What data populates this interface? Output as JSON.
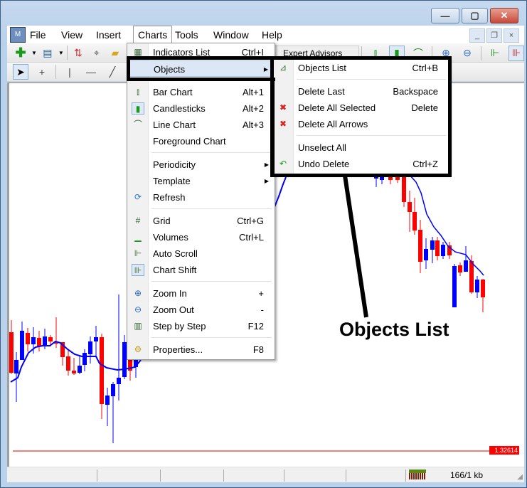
{
  "window": {
    "minimize": "—",
    "maximize": "▢",
    "close": "✕"
  },
  "menubar": {
    "items": [
      "File",
      "View",
      "Insert",
      "Charts",
      "Tools",
      "Window",
      "Help"
    ],
    "mdi": [
      "_",
      "❐",
      "×"
    ]
  },
  "toolbar": {
    "expert_advisors": "Expert Advisors"
  },
  "charts_menu": {
    "items": [
      {
        "label": "Indicators List",
        "shortcut": "Ctrl+I",
        "icon": "indicators-icon"
      },
      {
        "label": "Objects",
        "shortcut": "",
        "icon": "",
        "submenu": true,
        "highlighted": true
      },
      {
        "sep": true
      },
      {
        "label": "Bar Chart",
        "shortcut": "Alt+1",
        "icon": "bar-chart-icon"
      },
      {
        "label": "Candlesticks",
        "shortcut": "Alt+2",
        "icon": "candlesticks-icon",
        "checked": true
      },
      {
        "label": "Line Chart",
        "shortcut": "Alt+3",
        "icon": "line-chart-icon"
      },
      {
        "label": "Foreground Chart",
        "shortcut": "",
        "icon": ""
      },
      {
        "sep": true
      },
      {
        "label": "Periodicity",
        "shortcut": "",
        "icon": "",
        "submenu": true
      },
      {
        "label": "Template",
        "shortcut": "",
        "icon": "",
        "submenu": true
      },
      {
        "label": "Refresh",
        "shortcut": "",
        "icon": "refresh-icon"
      },
      {
        "sep": true
      },
      {
        "label": "Grid",
        "shortcut": "Ctrl+G",
        "icon": "grid-icon"
      },
      {
        "label": "Volumes",
        "shortcut": "Ctrl+L",
        "icon": "volumes-icon"
      },
      {
        "label": "Auto Scroll",
        "shortcut": "",
        "icon": "auto-scroll-icon"
      },
      {
        "label": "Chart Shift",
        "shortcut": "",
        "icon": "chart-shift-icon",
        "checked": true
      },
      {
        "sep": true
      },
      {
        "label": "Zoom In",
        "shortcut": "+",
        "icon": "zoom-in-icon"
      },
      {
        "label": "Zoom Out",
        "shortcut": "-",
        "icon": "zoom-out-icon"
      },
      {
        "label": "Step by Step",
        "shortcut": "F12",
        "icon": "step-by-step-icon"
      },
      {
        "sep": true
      },
      {
        "label": "Properties...",
        "shortcut": "F8",
        "icon": "properties-icon"
      }
    ]
  },
  "objects_submenu": {
    "items": [
      {
        "label": "Objects List",
        "shortcut": "Ctrl+B",
        "icon": "objects-list-icon"
      },
      {
        "sep": true
      },
      {
        "label": "Delete Last",
        "shortcut": "Backspace",
        "icon": ""
      },
      {
        "label": "Delete All Selected",
        "shortcut": "Delete",
        "icon": "delete-selected-icon"
      },
      {
        "label": "Delete All Arrows",
        "shortcut": "",
        "icon": "delete-arrows-icon"
      },
      {
        "sep": true
      },
      {
        "label": "Unselect All",
        "shortcut": "",
        "icon": ""
      },
      {
        "label": "Undo Delete",
        "shortcut": "Ctrl+Z",
        "icon": "undo-icon"
      }
    ]
  },
  "annotation": {
    "label": "Objects List"
  },
  "chart": {
    "price_label": "1.32614",
    "colors": {
      "bull": "#0000ff",
      "bear": "#ff0000",
      "ma": "#0000ff",
      "price_line": "#e00000"
    }
  },
  "status": {
    "traffic": "166/1 kb"
  }
}
